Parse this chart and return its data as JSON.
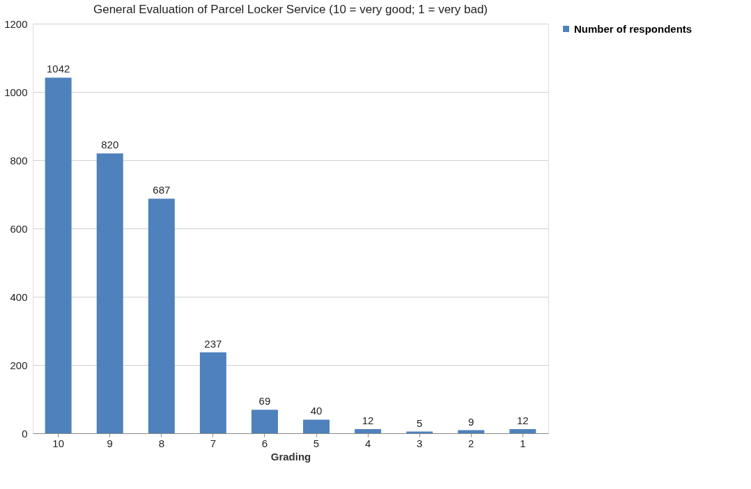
{
  "chart_data": {
    "type": "bar",
    "title": "General Evaluation of Parcel Locker Service (10 = very good; 1 = very bad)",
    "xlabel": "Grading",
    "categories": [
      "10",
      "9",
      "8",
      "7",
      "6",
      "5",
      "4",
      "3",
      "2",
      "1"
    ],
    "series": [
      {
        "name": "Number of respondents",
        "color": "#4f81bd",
        "values": [
          1042,
          820,
          687,
          237,
          69,
          40,
          12,
          5,
          9,
          12
        ]
      }
    ],
    "ylim": [
      0,
      1200
    ],
    "yticks": [
      0,
      200,
      400,
      600,
      800,
      1000,
      1200
    ],
    "grid": "y",
    "legend": "right",
    "data_labels": true
  }
}
